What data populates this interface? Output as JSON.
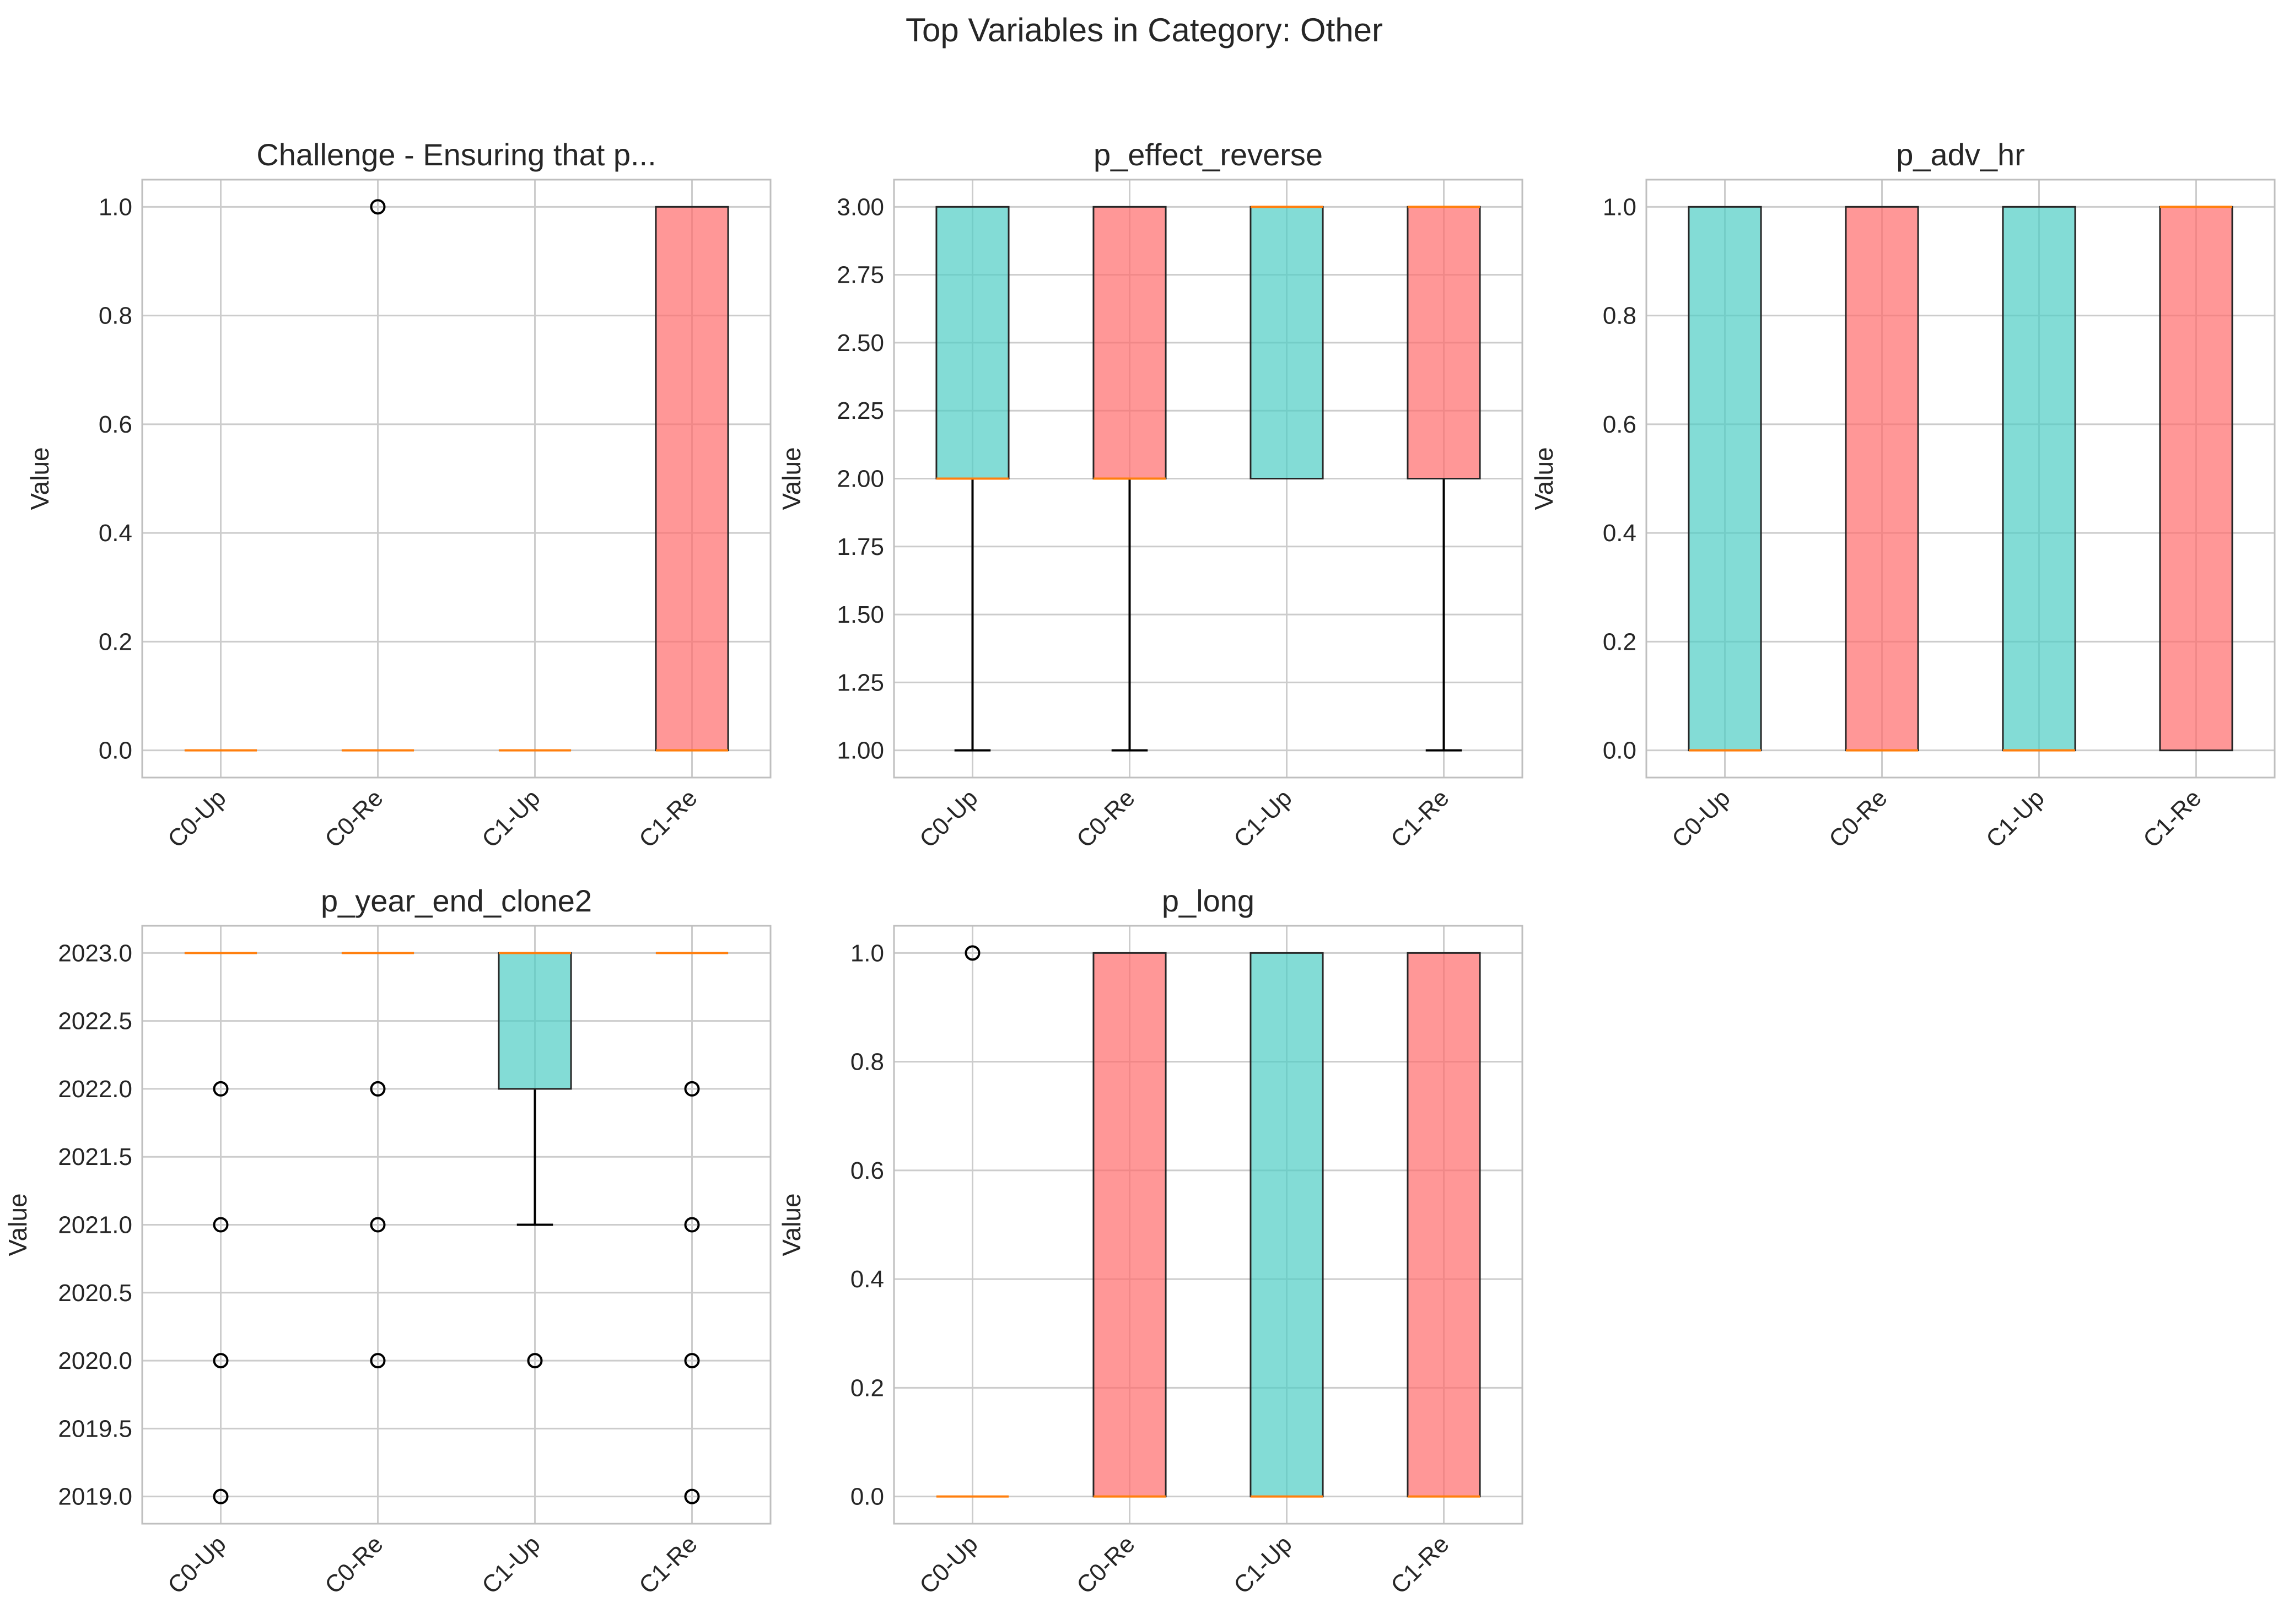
{
  "figure": {
    "title": "Top Variables in Category: Other"
  },
  "colors": {
    "up": "#4ecdc4",
    "re": "#ff6b6b",
    "median": "#ff7f0e",
    "whisker": "#000000"
  },
  "chart_data": [
    {
      "type": "box",
      "title": "Challenge - Ensuring that p...",
      "ylabel": "Value",
      "categories": [
        "C0-Up",
        "C0-Re",
        "C1-Up",
        "C1-Re"
      ],
      "ylim": [
        -0.05,
        1.05
      ],
      "yticks": [
        0.0,
        0.2,
        0.4,
        0.6,
        0.8,
        1.0
      ],
      "tick_decimals": 1,
      "boxes": [
        {
          "q1": 0,
          "median": 0,
          "q3": 0,
          "whislo": 0,
          "whishi": 0,
          "fliers": []
        },
        {
          "q1": 0,
          "median": 0,
          "q3": 0,
          "whislo": 0,
          "whishi": 0,
          "fliers": [
            1.0
          ]
        },
        {
          "q1": 0,
          "median": 0,
          "q3": 0,
          "whislo": 0,
          "whishi": 0,
          "fliers": []
        },
        {
          "q1": 0,
          "median": 0,
          "q3": 1,
          "whislo": 0,
          "whishi": 1,
          "fliers": []
        }
      ]
    },
    {
      "type": "box",
      "title": "p_effect_reverse",
      "ylabel": "Value",
      "categories": [
        "C0-Up",
        "C0-Re",
        "C1-Up",
        "C1-Re"
      ],
      "ylim": [
        0.9,
        3.1
      ],
      "yticks": [
        1.0,
        1.25,
        1.5,
        1.75,
        2.0,
        2.25,
        2.5,
        2.75,
        3.0
      ],
      "tick_decimals": 2,
      "boxes": [
        {
          "q1": 2,
          "median": 2,
          "q3": 3,
          "whislo": 1,
          "whishi": 3,
          "fliers": []
        },
        {
          "q1": 2,
          "median": 2,
          "q3": 3,
          "whislo": 1,
          "whishi": 3,
          "fliers": []
        },
        {
          "q1": 2,
          "median": 3,
          "q3": 3,
          "whislo": 2,
          "whishi": 3,
          "fliers": []
        },
        {
          "q1": 2,
          "median": 3,
          "q3": 3,
          "whislo": 1,
          "whishi": 3,
          "fliers": []
        }
      ]
    },
    {
      "type": "box",
      "title": "p_adv_hr",
      "ylabel": "Value",
      "categories": [
        "C0-Up",
        "C0-Re",
        "C1-Up",
        "C1-Re"
      ],
      "ylim": [
        -0.05,
        1.05
      ],
      "yticks": [
        0.0,
        0.2,
        0.4,
        0.6,
        0.8,
        1.0
      ],
      "tick_decimals": 1,
      "boxes": [
        {
          "q1": 0,
          "median": 0,
          "q3": 1,
          "whislo": 0,
          "whishi": 1,
          "fliers": []
        },
        {
          "q1": 0,
          "median": 0,
          "q3": 1,
          "whislo": 0,
          "whishi": 1,
          "fliers": []
        },
        {
          "q1": 0,
          "median": 0,
          "q3": 1,
          "whislo": 0,
          "whishi": 1,
          "fliers": []
        },
        {
          "q1": 0,
          "median": 1,
          "q3": 1,
          "whislo": 0,
          "whishi": 1,
          "fliers": []
        }
      ]
    },
    {
      "type": "box",
      "title": "p_year_end_clone2",
      "ylabel": "Value",
      "categories": [
        "C0-Up",
        "C0-Re",
        "C1-Up",
        "C1-Re"
      ],
      "ylim": [
        2018.8,
        2023.2
      ],
      "yticks": [
        2019.0,
        2019.5,
        2020.0,
        2020.5,
        2021.0,
        2021.5,
        2022.0,
        2022.5,
        2023.0
      ],
      "tick_decimals": 1,
      "boxes": [
        {
          "q1": 2023,
          "median": 2023,
          "q3": 2023,
          "whislo": 2023,
          "whishi": 2023,
          "fliers": [
            2022,
            2021,
            2020,
            2019
          ]
        },
        {
          "q1": 2023,
          "median": 2023,
          "q3": 2023,
          "whislo": 2023,
          "whishi": 2023,
          "fliers": [
            2022,
            2021,
            2020
          ]
        },
        {
          "q1": 2022,
          "median": 2023,
          "q3": 2023,
          "whislo": 2021,
          "whishi": 2023,
          "fliers": [
            2020
          ]
        },
        {
          "q1": 2023,
          "median": 2023,
          "q3": 2023,
          "whislo": 2023,
          "whishi": 2023,
          "fliers": [
            2022,
            2021,
            2020,
            2019
          ]
        }
      ]
    },
    {
      "type": "box",
      "title": "p_long",
      "ylabel": "Value",
      "categories": [
        "C0-Up",
        "C0-Re",
        "C1-Up",
        "C1-Re"
      ],
      "ylim": [
        -0.05,
        1.05
      ],
      "yticks": [
        0.0,
        0.2,
        0.4,
        0.6,
        0.8,
        1.0
      ],
      "tick_decimals": 1,
      "boxes": [
        {
          "q1": 0,
          "median": 0,
          "q3": 0,
          "whislo": 0,
          "whishi": 0,
          "fliers": [
            1.0
          ]
        },
        {
          "q1": 0,
          "median": 0,
          "q3": 1,
          "whislo": 0,
          "whishi": 1,
          "fliers": []
        },
        {
          "q1": 0,
          "median": 0,
          "q3": 1,
          "whislo": 0,
          "whishi": 1,
          "fliers": []
        },
        {
          "q1": 0,
          "median": 0,
          "q3": 1,
          "whislo": 0,
          "whishi": 1,
          "fliers": []
        }
      ]
    }
  ]
}
